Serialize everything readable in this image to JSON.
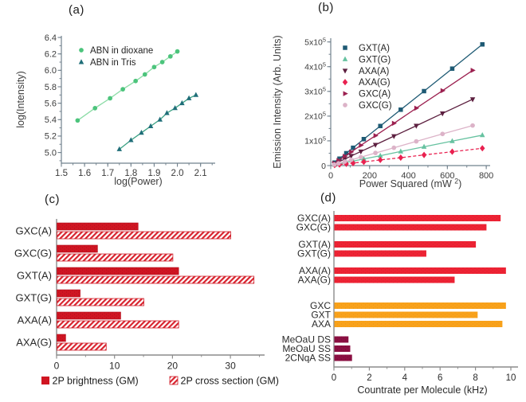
{
  "figure": {
    "background": "#ffffff"
  },
  "chart_data": [
    {
      "id": "a",
      "type": "scatter",
      "panel_label": "(a)",
      "xlabel": "log(Power)",
      "ylabel": "log(Intensity)",
      "xlim": [
        1.5,
        2.163
      ],
      "ylim": [
        4.87,
        6.42
      ],
      "xminor": 0.05,
      "yminor": 0.1,
      "grid": false,
      "legend_position": "top-left-inside",
      "xticks": [
        {
          "v": 1.5,
          "t": "1.5"
        },
        {
          "v": 1.6,
          "t": "1.6"
        },
        {
          "v": 1.7,
          "t": "1.7"
        },
        {
          "v": 1.8,
          "t": "1.8"
        },
        {
          "v": 1.9,
          "t": "1.9"
        },
        {
          "v": 2.0,
          "t": "2.0"
        },
        {
          "v": 2.1,
          "t": "2.1"
        }
      ],
      "yticks": [
        {
          "v": 5.0,
          "t": "5.0"
        },
        {
          "v": 5.2,
          "t": "5.2"
        },
        {
          "v": 5.4,
          "t": "5.4"
        },
        {
          "v": 5.6,
          "t": "5.6"
        },
        {
          "v": 5.8,
          "t": "5.8"
        },
        {
          "v": 6.0,
          "t": "6.0"
        },
        {
          "v": 6.2,
          "t": "6.2"
        },
        {
          "v": 6.4,
          "t": "6.4"
        }
      ],
      "series": [
        {
          "name": "ABN in dioxane",
          "marker": "circle",
          "color": "#4cc47c",
          "line_color": "#8bdca6",
          "x": [
            1.57,
            1.645,
            1.71,
            1.765,
            1.82,
            1.86,
            1.9,
            1.935,
            1.97,
            2.0
          ],
          "y": [
            5.39,
            5.54,
            5.66,
            5.77,
            5.87,
            5.95,
            6.04,
            6.1,
            6.17,
            6.23
          ]
        },
        {
          "name": "ABN in Tris",
          "marker": "triangle-up",
          "color": "#1f6e78",
          "line_color": "#3aa183",
          "x": [
            1.75,
            1.8,
            1.845,
            1.885,
            1.925,
            1.955,
            1.99,
            2.02,
            2.05,
            2.08
          ],
          "y": [
            5.04,
            5.15,
            5.24,
            5.32,
            5.4,
            5.48,
            5.54,
            5.6,
            5.66,
            5.7
          ]
        }
      ]
    },
    {
      "id": "b",
      "type": "scatter",
      "panel_label": "(b)",
      "xlabel_parts": [
        {
          "t": "Power Squared (mW "
        },
        {
          "t": "2",
          "sup": true
        },
        {
          "t": ")"
        }
      ],
      "ylabel": "Emission Intensity (Arb. Units)",
      "xlim": [
        0,
        820
      ],
      "ylim": [
        0,
        515000
      ],
      "xminor": 100,
      "yminor": 50000,
      "grid": false,
      "legend_position": "top-left-inside",
      "xticks": [
        {
          "v": 0,
          "t": "0"
        },
        {
          "v": 200,
          "t": "200"
        },
        {
          "v": 400,
          "t": "400"
        },
        {
          "v": 600,
          "t": "600"
        },
        {
          "v": 800,
          "t": "800"
        }
      ],
      "yticks": [
        {
          "v": 0,
          "parts": [
            {
              "t": "0"
            }
          ]
        },
        {
          "v": 100000,
          "parts": [
            {
              "t": "1x10"
            },
            {
              "t": "5",
              "sup": true
            }
          ]
        },
        {
          "v": 200000,
          "parts": [
            {
              "t": "2x10"
            },
            {
              "t": "5",
              "sup": true
            }
          ]
        },
        {
          "v": 300000,
          "parts": [
            {
              "t": "3x10"
            },
            {
              "t": "5",
              "sup": true
            }
          ]
        },
        {
          "v": 400000,
          "parts": [
            {
              "t": "4x10"
            },
            {
              "t": "5",
              "sup": true
            }
          ]
        },
        {
          "v": 500000,
          "parts": [
            {
              "t": "5x10"
            },
            {
              "t": "5",
              "sup": true
            }
          ]
        }
      ],
      "series": [
        {
          "name": "GXT(A)",
          "marker": "square",
          "color": "#1e5a74",
          "x": [
            20,
            45,
            80,
            115,
            170,
            255,
            360,
            480,
            625,
            780
          ],
          "y": [
            12000,
            28000,
            50000,
            72000,
            107000,
            160000,
            226000,
            301000,
            392000,
            490000
          ]
        },
        {
          "name": "GXT(G)",
          "marker": "triangle-up",
          "color": "#66c2a0",
          "x": [
            20,
            45,
            80,
            115,
            170,
            255,
            360,
            480,
            625,
            780
          ],
          "y": [
            3000,
            7000,
            13000,
            18000,
            27000,
            40000,
            57000,
            76000,
            99000,
            123000
          ]
        },
        {
          "name": "AXA(A)",
          "marker": "triangle-down",
          "color": "#5c1f3f",
          "x": [
            18,
            40,
            72,
            105,
            155,
            230,
            325,
            440,
            575,
            730
          ],
          "y": [
            7000,
            15000,
            26000,
            39000,
            57000,
            84000,
            119000,
            161000,
            211000,
            268000
          ]
        },
        {
          "name": "AXA(G)",
          "marker": "diamond",
          "color": "#e92150",
          "dashed": true,
          "x": [
            20,
            45,
            80,
            115,
            170,
            255,
            360,
            480,
            625,
            780
          ],
          "y": [
            2000,
            4000,
            7000,
            10000,
            15000,
            23000,
            32000,
            43000,
            56000,
            70000
          ]
        },
        {
          "name": "GXC(A)",
          "marker": "triangle-right",
          "color": "#9c2150",
          "x": [
            18,
            40,
            72,
            105,
            155,
            230,
            325,
            440,
            575,
            730
          ],
          "y": [
            9000,
            21000,
            38000,
            55000,
            82000,
            121000,
            171000,
            232000,
            303000,
            385000
          ]
        },
        {
          "name": "GXC(G)",
          "marker": "hexagon",
          "color": "#dcb3c8",
          "x": [
            18,
            40,
            72,
            105,
            155,
            230,
            325,
            440,
            575,
            730
          ],
          "y": [
            4000,
            9000,
            16000,
            23000,
            34000,
            51000,
            72000,
            98000,
            128000,
            162000
          ]
        }
      ]
    },
    {
      "id": "c",
      "type": "barh_grouped",
      "panel_label": "(c)",
      "categories": [
        "GXC(A)",
        "GXC(G)",
        "GXT(A)",
        "GXT(G)",
        "AXA(A)",
        "AXA(G)"
      ],
      "xlim": [
        0,
        35.9
      ],
      "xticks": [
        {
          "v": 0,
          "t": "0"
        },
        {
          "v": 10,
          "t": "10"
        },
        {
          "v": 20,
          "t": "20"
        },
        {
          "v": 30,
          "t": "30"
        }
      ],
      "xminor_ticks": [
        5,
        15,
        25,
        35
      ],
      "legend_position": "bottom",
      "series": [
        {
          "name": "2P brightness (GM)",
          "style": "solid",
          "color": "#d01522",
          "values": [
            14,
            7,
            21,
            4,
            11,
            1.5
          ]
        },
        {
          "name": "2P cross section (GM)",
          "style": "hatched",
          "color": "#d8232e",
          "values": [
            30,
            20,
            34,
            15,
            21,
            8.5
          ]
        }
      ]
    },
    {
      "id": "d",
      "type": "barh",
      "panel_label": "(d)",
      "xlabel": "Countrate per Molecule (kHz)",
      "xlim": [
        0,
        10.4
      ],
      "xticks": [
        {
          "v": 0,
          "t": "0"
        },
        {
          "v": 2,
          "t": "2"
        },
        {
          "v": 4,
          "t": "4"
        },
        {
          "v": 6,
          "t": "6"
        },
        {
          "v": 8,
          "t": "8"
        },
        {
          "v": 10,
          "t": "10"
        }
      ],
      "colors": {
        "red": "#ee2334",
        "orange": "#f9a21b",
        "maroon": "#8c0f42"
      },
      "groups": [
        {
          "items": [
            {
              "label": "GXC(A)",
              "value": 9.4,
              "color": "red"
            },
            {
              "label": "GXC(G)",
              "value": 8.6,
              "color": "red"
            }
          ]
        },
        {
          "items": [
            {
              "label": "GXT(A)",
              "value": 8.0,
              "color": "red"
            },
            {
              "label": "GXT(G)",
              "value": 5.2,
              "color": "red"
            }
          ]
        },
        {
          "items": [
            {
              "label": "AXA(A)",
              "value": 9.7,
              "color": "red"
            },
            {
              "label": "AXA(G)",
              "value": 6.8,
              "color": "red"
            }
          ]
        },
        {
          "items": [
            {
              "label": "GXC",
              "value": 9.7,
              "color": "orange"
            },
            {
              "label": "GXT",
              "value": 8.1,
              "color": "orange"
            },
            {
              "label": "AXA",
              "value": 9.5,
              "color": "orange"
            }
          ]
        },
        {
          "items": [
            {
              "label": "MeOaU DS",
              "value": 0.8,
              "color": "maroon"
            },
            {
              "label": "MeOaU SS",
              "value": 0.9,
              "color": "maroon"
            },
            {
              "label": "2CNqA SS",
              "value": 1.0,
              "color": "maroon"
            }
          ]
        }
      ]
    }
  ]
}
